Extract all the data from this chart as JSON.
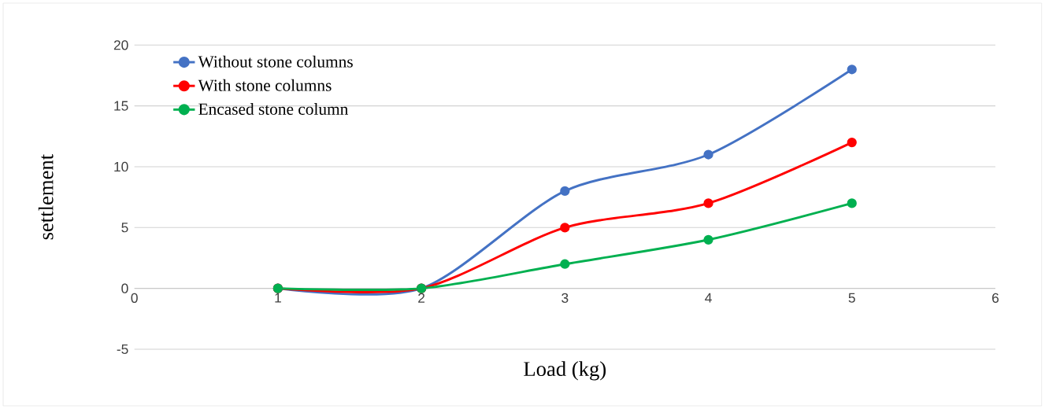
{
  "chart_data": {
    "type": "line",
    "xlabel": "Load (kg)",
    "ylabel": "settlement",
    "x": [
      1,
      2,
      3,
      4,
      5
    ],
    "series": [
      {
        "name": "Without stone columns",
        "color": "#4472c4",
        "values": [
          0,
          0,
          8,
          11,
          18
        ]
      },
      {
        "name": "With stone columns",
        "color": "#ff0000",
        "values": [
          0,
          0,
          5,
          7,
          12
        ]
      },
      {
        "name": "Encased stone column",
        "color": "#00b050",
        "values": [
          0,
          0,
          2,
          4,
          7
        ]
      }
    ],
    "xlim": [
      0,
      6
    ],
    "xticks": [
      0,
      1,
      2,
      3,
      4,
      5,
      6
    ],
    "ylim": [
      -5,
      20
    ],
    "yticks": [
      -5,
      0,
      5,
      10,
      15,
      20
    ],
    "grid": "y",
    "legend": "top left",
    "marker": "circle",
    "line_style": "solid"
  }
}
